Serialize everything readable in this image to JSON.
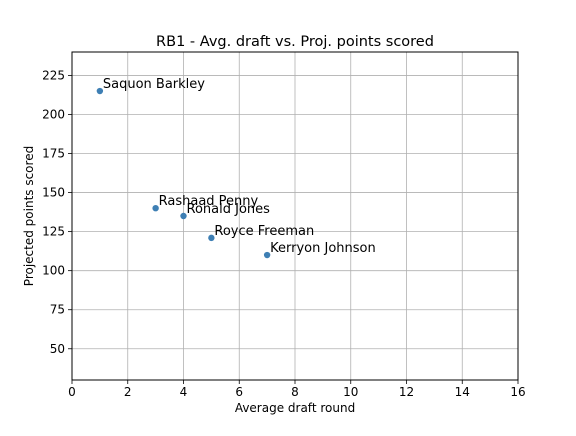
{
  "chart_data": {
    "type": "scatter",
    "title": "RB1 - Avg. draft vs. Proj. points scored",
    "xlabel": "Average draft round",
    "ylabel": "Projected points scored",
    "xlim": [
      0,
      16
    ],
    "ylim": [
      30,
      240
    ],
    "xticks": [
      0,
      2,
      4,
      6,
      8,
      10,
      12,
      14,
      16
    ],
    "yticks": [
      50,
      75,
      100,
      125,
      150,
      175,
      200,
      225
    ],
    "grid": true,
    "point_color": "#3e7fb4",
    "points": [
      {
        "label": "Saquon Barkley",
        "x": 1,
        "y": 215
      },
      {
        "label": "Rashaad Penny",
        "x": 3,
        "y": 140
      },
      {
        "label": "Ronald Jones",
        "x": 4,
        "y": 135
      },
      {
        "label": "Royce Freeman",
        "x": 5,
        "y": 121
      },
      {
        "label": "Kerryon Johnson",
        "x": 7,
        "y": 110
      }
    ]
  }
}
